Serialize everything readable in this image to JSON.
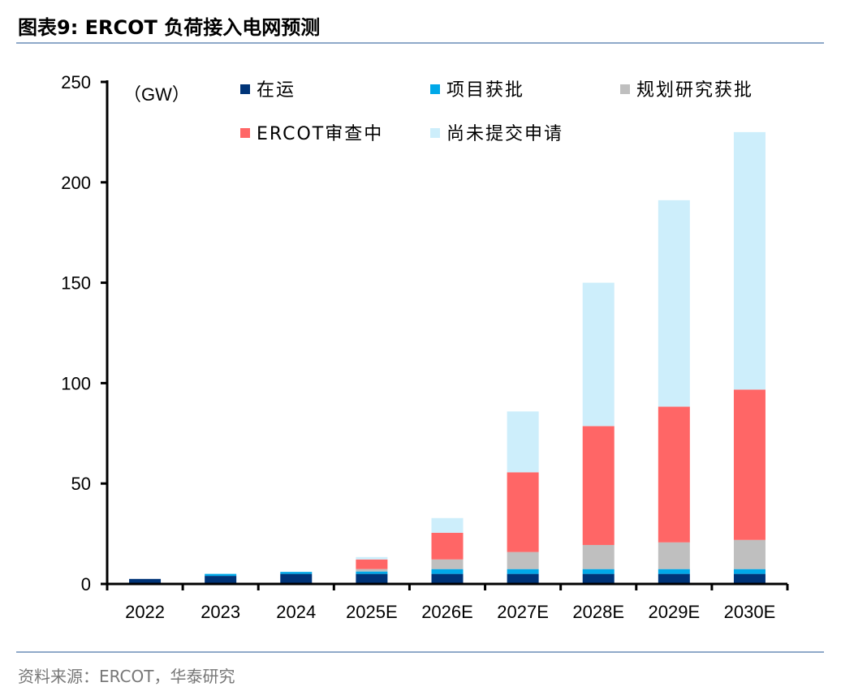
{
  "title": "图表9:  ERCOT 负荷接入电网预测",
  "source": "资料来源：ERCOT，华泰研究",
  "chart_data": {
    "type": "bar",
    "stacked": true,
    "unit_label": "（GW）",
    "categories": [
      "2022",
      "2023",
      "2024",
      "2025E",
      "2026E",
      "2027E",
      "2028E",
      "2029E",
      "2030E"
    ],
    "series": [
      {
        "name": "在运",
        "color": "#003478",
        "values": [
          2.5,
          4,
          5,
          5,
          5,
          5,
          5,
          5,
          5
        ]
      },
      {
        "name": "项目获批",
        "color": "#00a8e8",
        "values": [
          0,
          1,
          1,
          1.2,
          2.4,
          2.4,
          2.4,
          2.4,
          2.4
        ]
      },
      {
        "name": "规划研究获批",
        "color": "#bfbfbf",
        "values": [
          0,
          0,
          0,
          1.2,
          4.8,
          8.5,
          12,
          13.3,
          14.5
        ]
      },
      {
        "name": "ERCOT审查中",
        "color": "#ff6666",
        "values": [
          0,
          0,
          0,
          4.8,
          13.3,
          39.7,
          59.2,
          67.6,
          74.9
        ]
      },
      {
        "name": "尚未提交申请",
        "color": "#cdeefb",
        "values": [
          0,
          0,
          0,
          1.2,
          7.3,
          30.3,
          71.4,
          102.8,
          128.2
        ]
      }
    ],
    "ylim": [
      0,
      250
    ],
    "yticks": [
      0,
      50,
      100,
      150,
      200,
      250
    ],
    "xlabel": "",
    "ylabel": "",
    "legend": "top"
  }
}
